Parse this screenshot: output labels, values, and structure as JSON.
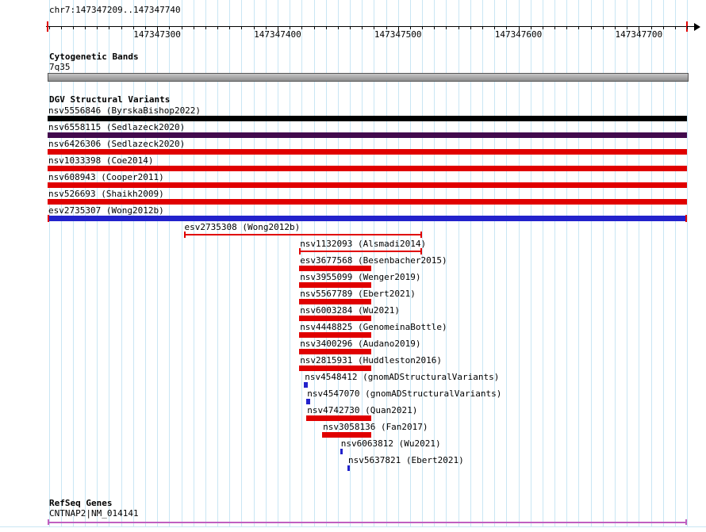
{
  "header": {
    "region_label": "chr7:147347209..147347740"
  },
  "sections": {
    "cytogenetic": {
      "title": "Cytogenetic Bands",
      "band_label": "7q35"
    },
    "dgv": {
      "title": "DGV Structural Variants"
    },
    "refseq": {
      "title": "RefSeq Genes",
      "gene_label": "CNTNAP2|NM_014141"
    }
  },
  "colors": {
    "grid": "#c9e6f4",
    "boundary": "#e00000",
    "loss_red": "#e00000",
    "gain_blue": "#2222cc",
    "cytoband_gray": "#a8a8a8",
    "gene_violet": "#c060c0"
  },
  "chart_data": {
    "type": "genome-browser-tracks",
    "region": {
      "chrom": "chr7",
      "start": 147347209,
      "end": 147347740
    },
    "axis": {
      "major_tick_bp": 100,
      "grid_bp": 10,
      "tick_labels": [
        "147347300",
        "147347400",
        "147347500",
        "147347600",
        "147347700"
      ]
    },
    "cytoband": {
      "name": "7q35"
    },
    "tracks": [
      {
        "label": "nsv5556846 (ByrskaBishop2022)",
        "start": 147347209,
        "end": 147347740,
        "shape": "bar",
        "color": "#000000"
      },
      {
        "label": "nsv6558115 (Sedlazeck2020)",
        "start": 147347209,
        "end": 147347740,
        "shape": "bar",
        "color": "#420a4d"
      },
      {
        "label": "nsv6426306 (Sedlazeck2020)",
        "start": 147347209,
        "end": 147347740,
        "shape": "bar",
        "color": "#e00000"
      },
      {
        "label": "nsv1033398 (Coe2014)",
        "start": 147347209,
        "end": 147347740,
        "shape": "bar",
        "color": "#e00000"
      },
      {
        "label": "nsv608943 (Cooper2011)",
        "start": 147347209,
        "end": 147347740,
        "shape": "bar",
        "color": "#e00000"
      },
      {
        "label": "nsv526693 (Shaikh2009)",
        "start": 147347209,
        "end": 147347740,
        "shape": "bar",
        "color": "#e00000"
      },
      {
        "label": "esv2735307 (Wong2012b)",
        "start": 147347209,
        "end": 147347740,
        "shape": "bar",
        "color": "#2222cc",
        "caps": "#e00000"
      },
      {
        "label": "esv2735308 (Wong2012b)",
        "start": 147347322,
        "end": 147347520,
        "shape": "ibeam",
        "color": "#e00000"
      },
      {
        "label": "nsv1132093 (Alsmadi2014)",
        "start": 147347418,
        "end": 147347520,
        "shape": "ibeam",
        "color": "#e00000"
      },
      {
        "label": "esv3677568 (Besenbacher2015)",
        "start": 147347418,
        "end": 147347478,
        "shape": "bar",
        "color": "#e00000"
      },
      {
        "label": "nsv3955099 (Wenger2019)",
        "start": 147347418,
        "end": 147347478,
        "shape": "bar",
        "color": "#e00000"
      },
      {
        "label": "nsv5567789 (Ebert2021)",
        "start": 147347418,
        "end": 147347478,
        "shape": "bar",
        "color": "#e00000"
      },
      {
        "label": "nsv6003284 (Wu2021)",
        "start": 147347418,
        "end": 147347478,
        "shape": "bar",
        "color": "#e00000"
      },
      {
        "label": "nsv4448825 (GenomeinaBottle)",
        "start": 147347418,
        "end": 147347478,
        "shape": "bar",
        "color": "#e00000"
      },
      {
        "label": "nsv3400296 (Audano2019)",
        "start": 147347418,
        "end": 147347478,
        "shape": "bar",
        "color": "#e00000"
      },
      {
        "label": "nsv2815931 (Huddleston2016)",
        "start": 147347418,
        "end": 147347478,
        "shape": "bar",
        "color": "#e00000"
      },
      {
        "label": "nsv4548412 (gnomADStructuralVariants)",
        "start": 147347422,
        "end": 147347425,
        "shape": "point",
        "color": "#2222cc"
      },
      {
        "label": "nsv4547070 (gnomADStructuralVariants)",
        "start": 147347424,
        "end": 147347427,
        "shape": "point",
        "color": "#2222cc"
      },
      {
        "label": "nsv4742730 (Quan2021)",
        "start": 147347424,
        "end": 147347478,
        "shape": "bar",
        "color": "#e00000"
      },
      {
        "label": "nsv3058136 (Fan2017)",
        "start": 147347437,
        "end": 147347478,
        "shape": "bar",
        "color": "#e00000"
      },
      {
        "label": "nsv6063812 (Wu2021)",
        "start": 147347452,
        "end": 147347454,
        "shape": "point",
        "color": "#2222cc"
      },
      {
        "label": "nsv5637821 (Ebert2021)",
        "start": 147347458,
        "end": 147347460,
        "shape": "point",
        "color": "#2222cc"
      }
    ],
    "gene": {
      "start": 147347209,
      "end": 147347740,
      "color": "#c060c0"
    }
  }
}
